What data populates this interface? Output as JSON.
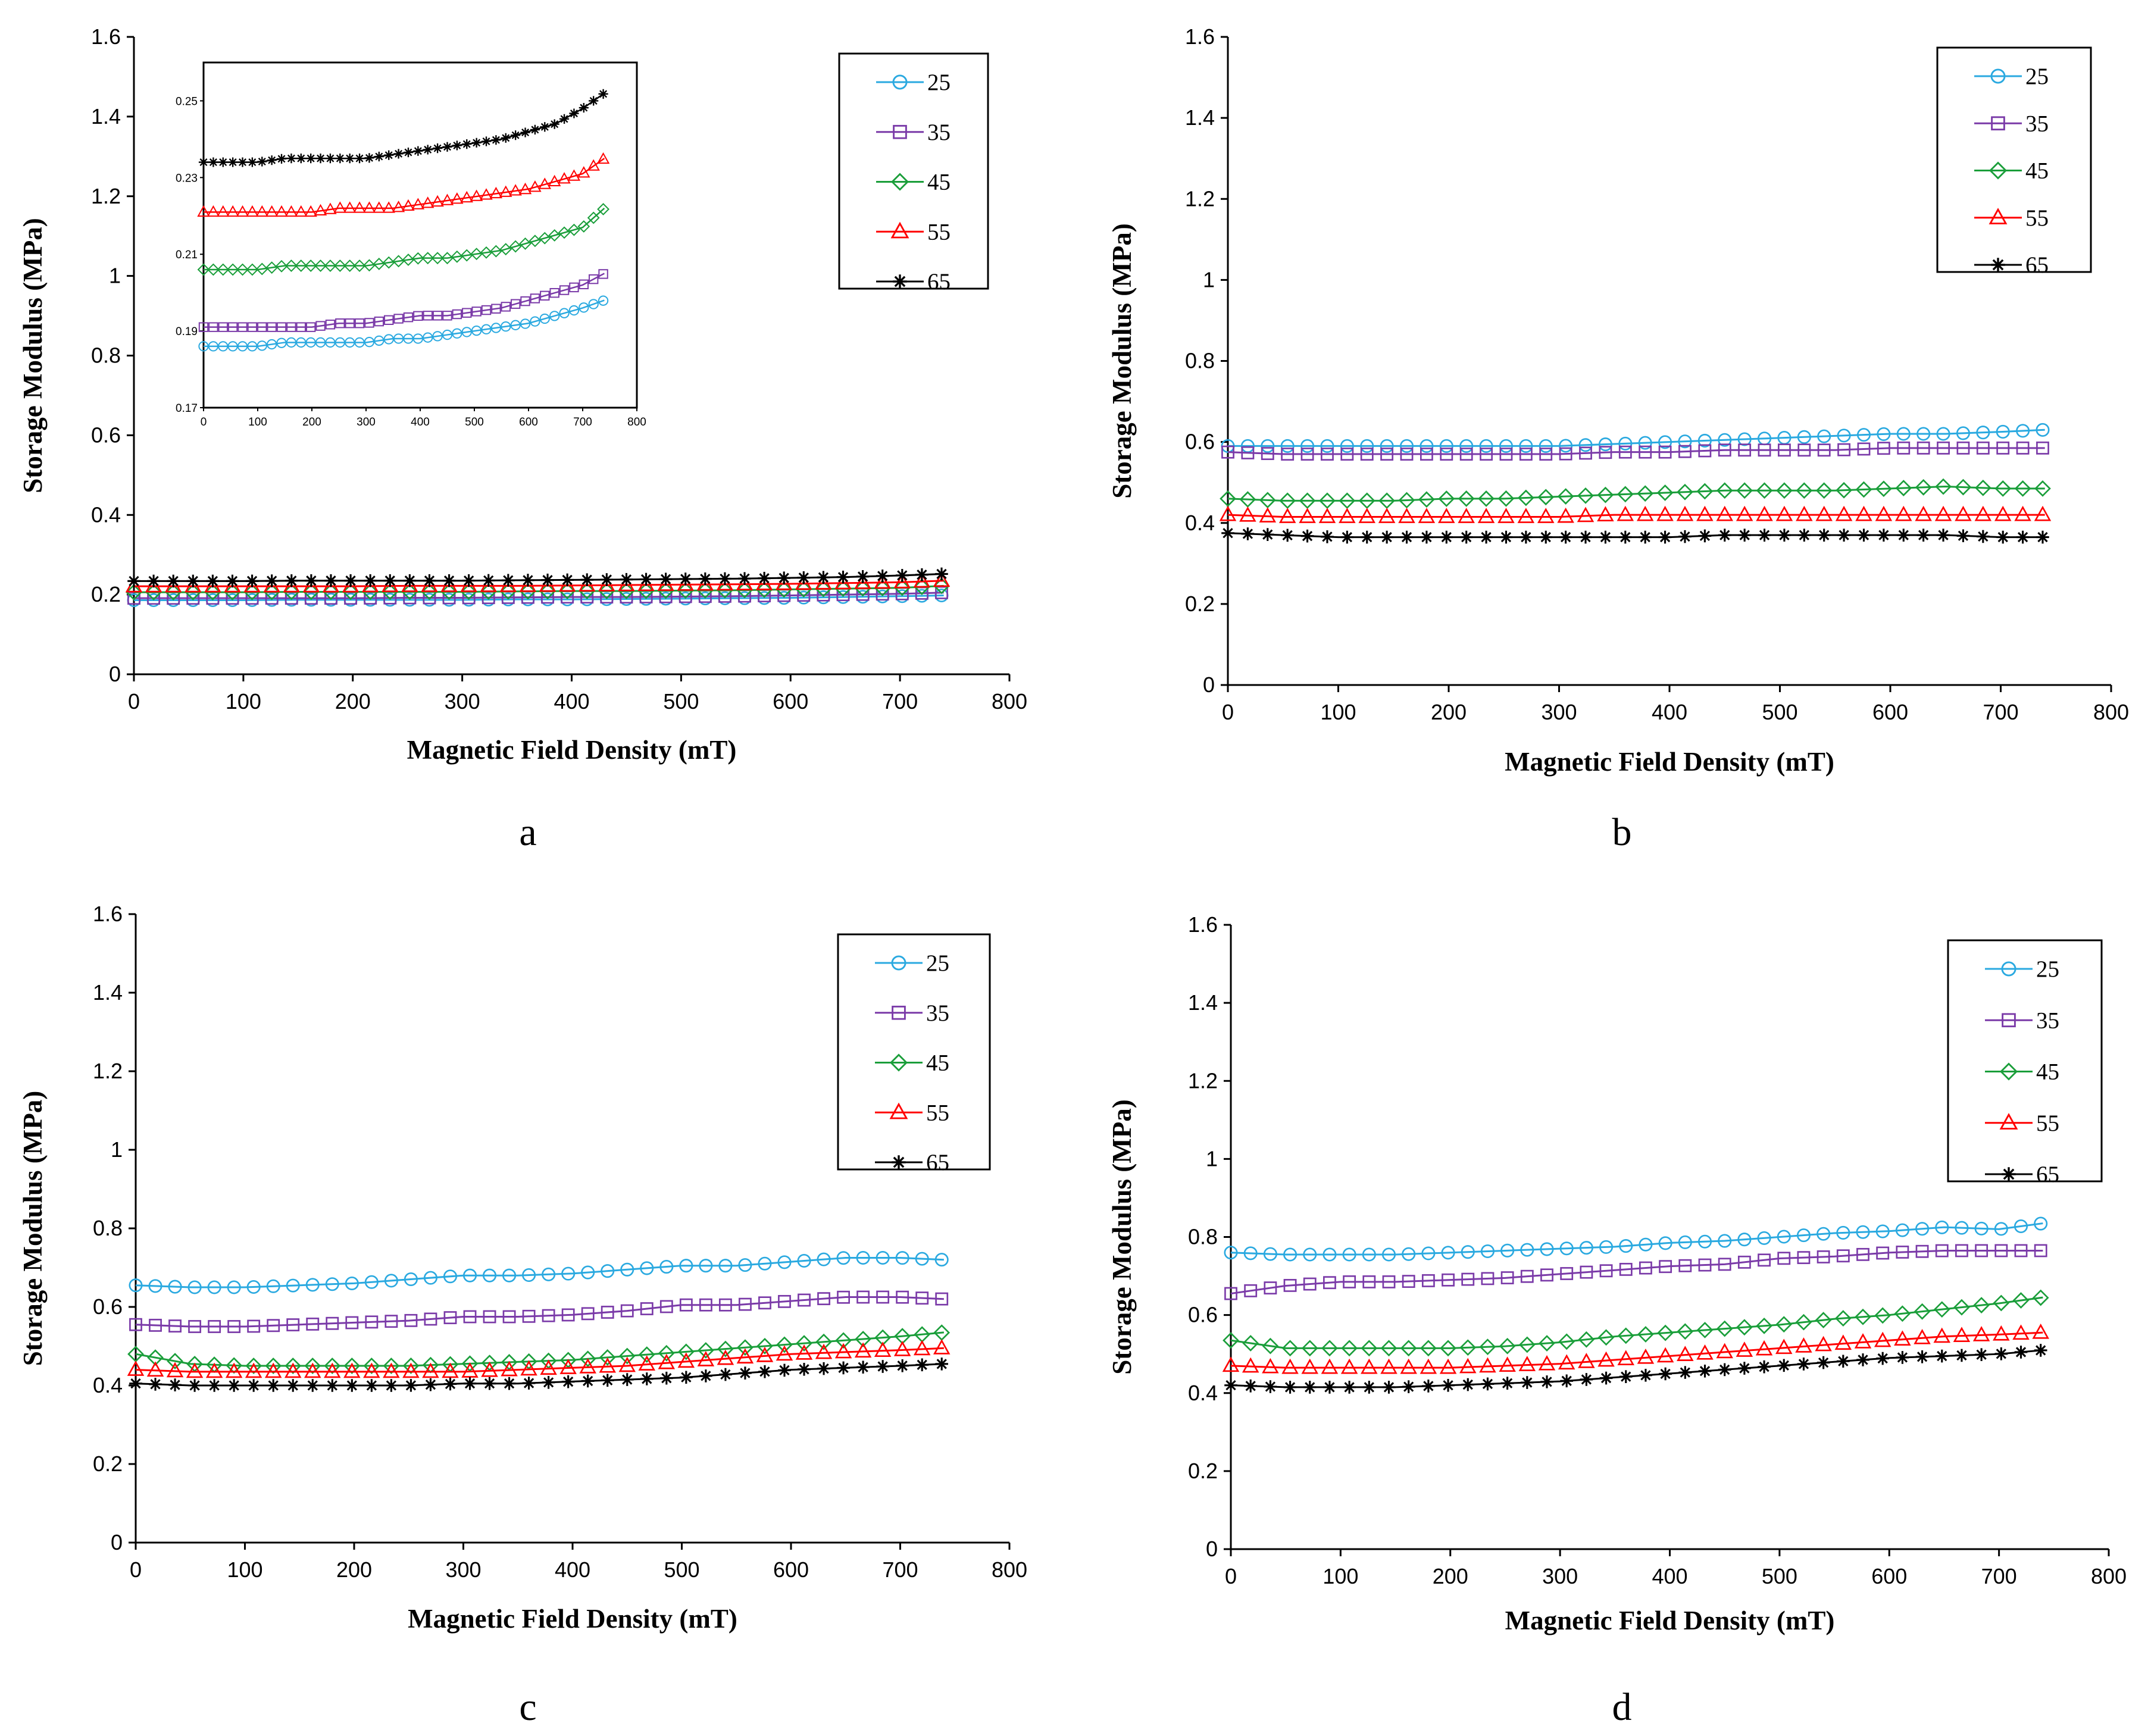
{
  "series_meta": [
    {
      "name": "25",
      "color": "#2aa9e0",
      "marker": "circle"
    },
    {
      "name": "35",
      "color": "#7a3aa8",
      "marker": "square"
    },
    {
      "name": "45",
      "color": "#1a9e3a",
      "marker": "diamond"
    },
    {
      "name": "55",
      "color": "#ff0000",
      "marker": "triangle"
    },
    {
      "name": "65",
      "color": "#000000",
      "marker": "star"
    }
  ],
  "chart_data": [
    {
      "type": "line",
      "panel": "a",
      "xlabel": "Magnetic Field Density (mT)",
      "ylabel": "Storage Modulus (MPa)",
      "xlim": [
        0,
        800
      ],
      "ylim": [
        0,
        1.6
      ],
      "xticks": [
        "0",
        "100",
        "200",
        "300",
        "400",
        "500",
        "600",
        "700",
        "800"
      ],
      "yticks": [
        "0",
        "0.2",
        "0.4",
        "0.6",
        "0.8",
        "1",
        "1.2",
        "1.4",
        "1.6"
      ],
      "legend": [
        "25",
        "35",
        "45",
        "55",
        "65"
      ],
      "x": [
        0,
        50,
        100,
        150,
        200,
        250,
        300,
        350,
        400,
        450,
        500,
        550,
        600,
        650,
        700,
        740
      ],
      "series": [
        {
          "name": "25",
          "values": [
            0.186,
            0.186,
            0.186,
            0.187,
            0.187,
            0.187,
            0.187,
            0.188,
            0.188,
            0.189,
            0.19,
            0.191,
            0.192,
            0.194,
            0.196,
            0.198
          ]
        },
        {
          "name": "35",
          "values": [
            0.191,
            0.191,
            0.191,
            0.191,
            0.191,
            0.192,
            0.192,
            0.193,
            0.194,
            0.194,
            0.195,
            0.196,
            0.198,
            0.2,
            0.202,
            0.205
          ]
        },
        {
          "name": "45",
          "values": [
            0.206,
            0.206,
            0.206,
            0.207,
            0.207,
            0.207,
            0.207,
            0.208,
            0.209,
            0.209,
            0.21,
            0.211,
            0.213,
            0.215,
            0.217,
            0.222
          ]
        },
        {
          "name": "55",
          "values": [
            0.221,
            0.221,
            0.221,
            0.221,
            0.221,
            0.222,
            0.222,
            0.222,
            0.223,
            0.224,
            0.225,
            0.226,
            0.227,
            0.229,
            0.231,
            0.235
          ]
        },
        {
          "name": "65",
          "values": [
            0.234,
            0.234,
            0.234,
            0.235,
            0.235,
            0.235,
            0.235,
            0.236,
            0.237,
            0.238,
            0.239,
            0.24,
            0.242,
            0.244,
            0.248,
            0.252
          ]
        }
      ],
      "inset": {
        "xlim": [
          0,
          800
        ],
        "ylim": [
          0.17,
          0.26
        ],
        "xticks": [
          "0",
          "100",
          "200",
          "300",
          "400",
          "500",
          "600",
          "700",
          "800"
        ],
        "yticks": [
          "0.17",
          "0.19",
          "0.21",
          "0.23",
          "0.25"
        ]
      }
    },
    {
      "type": "line",
      "panel": "b",
      "xlabel": "Magnetic Field Density (mT)",
      "ylabel": "Storage Modulus (MPa)",
      "xlim": [
        0,
        800
      ],
      "ylim": [
        0,
        1.6
      ],
      "xticks": [
        "0",
        "100",
        "200",
        "300",
        "400",
        "500",
        "600",
        "700",
        "800"
      ],
      "yticks": [
        "0",
        "0.2",
        "0.4",
        "0.6",
        "0.8",
        "1",
        "1.2",
        "1.4",
        "1.6"
      ],
      "legend": [
        "25",
        "35",
        "45",
        "55",
        "65"
      ],
      "x": [
        0,
        50,
        100,
        150,
        200,
        250,
        300,
        350,
        400,
        450,
        500,
        550,
        600,
        650,
        700,
        740
      ],
      "series": [
        {
          "name": "25",
          "values": [
            0.59,
            0.59,
            0.59,
            0.59,
            0.59,
            0.59,
            0.59,
            0.595,
            0.6,
            0.605,
            0.61,
            0.615,
            0.62,
            0.62,
            0.625,
            0.63
          ]
        },
        {
          "name": "35",
          "values": [
            0.575,
            0.57,
            0.57,
            0.57,
            0.57,
            0.57,
            0.57,
            0.575,
            0.575,
            0.58,
            0.58,
            0.58,
            0.585,
            0.585,
            0.585,
            0.585
          ]
        },
        {
          "name": "45",
          "values": [
            0.46,
            0.455,
            0.455,
            0.455,
            0.46,
            0.46,
            0.465,
            0.47,
            0.475,
            0.48,
            0.48,
            0.48,
            0.485,
            0.49,
            0.485,
            0.485
          ]
        },
        {
          "name": "55",
          "values": [
            0.42,
            0.415,
            0.415,
            0.415,
            0.415,
            0.415,
            0.415,
            0.42,
            0.42,
            0.42,
            0.42,
            0.42,
            0.42,
            0.42,
            0.42,
            0.42
          ]
        },
        {
          "name": "65",
          "values": [
            0.375,
            0.37,
            0.365,
            0.365,
            0.365,
            0.365,
            0.365,
            0.365,
            0.365,
            0.37,
            0.37,
            0.37,
            0.37,
            0.37,
            0.365,
            0.365
          ]
        }
      ]
    },
    {
      "type": "line",
      "panel": "c",
      "xlabel": "Magnetic Field Density (mT)",
      "ylabel": "Storage Modulus (MPa)",
      "xlim": [
        0,
        800
      ],
      "ylim": [
        0,
        1.6
      ],
      "xticks": [
        "0",
        "100",
        "200",
        "300",
        "400",
        "500",
        "600",
        "700",
        "800"
      ],
      "yticks": [
        "0",
        "0.2",
        "0.4",
        "0.6",
        "0.8",
        "1",
        "1.2",
        "1.4",
        "1.6"
      ],
      "legend": [
        "25",
        "35",
        "45",
        "55",
        "65"
      ],
      "x": [
        0,
        50,
        100,
        150,
        200,
        250,
        300,
        350,
        400,
        450,
        500,
        550,
        600,
        650,
        700,
        740
      ],
      "series": [
        {
          "name": "25",
          "values": [
            0.655,
            0.65,
            0.65,
            0.655,
            0.66,
            0.67,
            0.68,
            0.68,
            0.685,
            0.695,
            0.705,
            0.705,
            0.715,
            0.725,
            0.725,
            0.72
          ]
        },
        {
          "name": "35",
          "values": [
            0.555,
            0.55,
            0.55,
            0.555,
            0.56,
            0.565,
            0.575,
            0.575,
            0.58,
            0.59,
            0.605,
            0.605,
            0.615,
            0.625,
            0.625,
            0.62
          ]
        },
        {
          "name": "45",
          "values": [
            0.48,
            0.455,
            0.45,
            0.45,
            0.45,
            0.45,
            0.455,
            0.46,
            0.465,
            0.475,
            0.485,
            0.495,
            0.505,
            0.515,
            0.525,
            0.535
          ]
        },
        {
          "name": "55",
          "values": [
            0.44,
            0.435,
            0.435,
            0.435,
            0.435,
            0.435,
            0.435,
            0.44,
            0.445,
            0.45,
            0.46,
            0.47,
            0.48,
            0.485,
            0.49,
            0.495
          ]
        },
        {
          "name": "65",
          "values": [
            0.405,
            0.4,
            0.4,
            0.4,
            0.4,
            0.4,
            0.405,
            0.405,
            0.41,
            0.415,
            0.42,
            0.43,
            0.44,
            0.445,
            0.45,
            0.455
          ]
        }
      ]
    },
    {
      "type": "line",
      "panel": "d",
      "xlabel": "Magnetic Field Density (mT)",
      "ylabel": "Storage Modulus (MPa)",
      "xlim": [
        0,
        800
      ],
      "ylim": [
        0,
        1.6
      ],
      "xticks": [
        "0",
        "100",
        "200",
        "300",
        "400",
        "500",
        "600",
        "700",
        "800"
      ],
      "yticks": [
        "0",
        "0.2",
        "0.4",
        "0.6",
        "0.8",
        "1",
        "1.2",
        "1.4",
        "1.6"
      ],
      "legend": [
        "25",
        "35",
        "45",
        "55",
        "65"
      ],
      "x": [
        0,
        50,
        100,
        150,
        200,
        250,
        300,
        350,
        400,
        450,
        500,
        550,
        600,
        650,
        700,
        740
      ],
      "series": [
        {
          "name": "25",
          "values": [
            0.76,
            0.755,
            0.755,
            0.755,
            0.76,
            0.765,
            0.77,
            0.775,
            0.785,
            0.79,
            0.8,
            0.81,
            0.815,
            0.825,
            0.82,
            0.835
          ]
        },
        {
          "name": "35",
          "values": [
            0.655,
            0.675,
            0.685,
            0.685,
            0.69,
            0.695,
            0.705,
            0.715,
            0.725,
            0.73,
            0.745,
            0.75,
            0.76,
            0.765,
            0.765,
            0.765
          ]
        },
        {
          "name": "45",
          "values": [
            0.535,
            0.515,
            0.515,
            0.515,
            0.515,
            0.52,
            0.53,
            0.545,
            0.555,
            0.565,
            0.575,
            0.59,
            0.6,
            0.615,
            0.63,
            0.645
          ]
        },
        {
          "name": "55",
          "values": [
            0.47,
            0.465,
            0.465,
            0.465,
            0.465,
            0.47,
            0.475,
            0.485,
            0.495,
            0.505,
            0.515,
            0.525,
            0.535,
            0.545,
            0.55,
            0.555
          ]
        },
        {
          "name": "65",
          "values": [
            0.42,
            0.415,
            0.415,
            0.415,
            0.42,
            0.425,
            0.43,
            0.44,
            0.45,
            0.46,
            0.47,
            0.48,
            0.49,
            0.495,
            0.5,
            0.51
          ]
        }
      ]
    }
  ]
}
